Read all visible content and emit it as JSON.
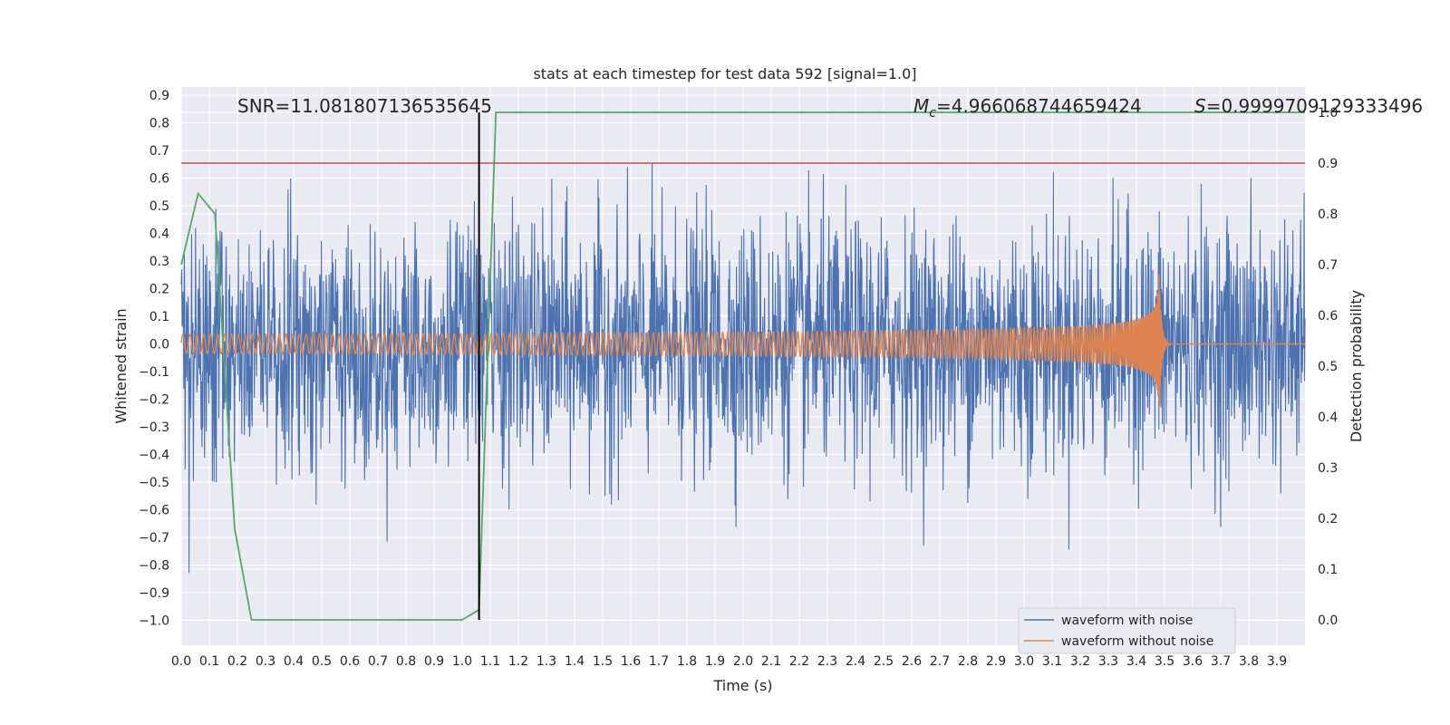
{
  "chart_data": {
    "type": "line",
    "title": "stats at each timestep for test data 592 [signal=1.0]",
    "xlabel": "Time (s)",
    "ylabel": "Whitened strain",
    "y2label": "Detection probability",
    "xlim": [
      0.0,
      4.0
    ],
    "ylim": [
      -1.09,
      0.93
    ],
    "y2lim": [
      -0.05,
      1.05
    ],
    "grid": true,
    "legend_position": "lower-right",
    "xticks": [
      "0.0",
      "0.1",
      "0.2",
      "0.3",
      "0.4",
      "0.5",
      "0.6",
      "0.7",
      "0.8",
      "0.9",
      "1.0",
      "1.1",
      "1.2",
      "1.3",
      "1.4",
      "1.5",
      "1.6",
      "1.7",
      "1.8",
      "1.9",
      "2.0",
      "2.1",
      "2.2",
      "2.3",
      "2.4",
      "2.5",
      "2.6",
      "2.7",
      "2.8",
      "2.9",
      "3.0",
      "3.1",
      "3.2",
      "3.3",
      "3.4",
      "3.5",
      "3.6",
      "3.7",
      "3.8",
      "3.9"
    ],
    "yticks": [
      "0.9",
      "0.8",
      "0.7",
      "0.6",
      "0.5",
      "0.4",
      "0.3",
      "0.2",
      "0.1",
      "0.0",
      "−0.1",
      "−0.2",
      "−0.3",
      "−0.4",
      "−0.5",
      "−0.6",
      "−0.7",
      "−0.8",
      "−0.9",
      "−1.0"
    ],
    "y2ticks": [
      "1.0",
      "0.9",
      "0.8",
      "0.7",
      "0.6",
      "0.5",
      "0.4",
      "0.3",
      "0.2",
      "0.1",
      "0.0"
    ],
    "annotations": {
      "snr": "SNR=11.081807136535645",
      "mc_symbol": "M",
      "mc_subscript": "c",
      "mc_value": "=4.966068744659424",
      "s_symbol": "S",
      "s_value": "=0.9999709129333496"
    },
    "series": [
      {
        "name": "waveform with noise",
        "color": "#4c72b0",
        "description_values": {
          "approx_std": 0.22,
          "min": -1.02,
          "max": 0.83
        }
      },
      {
        "name": "waveform without noise",
        "color": "#dd8452",
        "chirp": {
          "base_amplitude": 0.035,
          "peak_amplitude": 0.28,
          "merger_time": 3.48,
          "ringdown_end": 3.52
        }
      },
      {
        "name": "detection probability",
        "color": "#55a868",
        "axis": "right",
        "x": [
          0.0,
          0.06,
          0.12,
          0.19,
          0.25,
          0.31,
          1.0,
          1.06,
          1.12,
          1.18,
          4.0
        ],
        "y": [
          0.7,
          0.84,
          0.8,
          0.18,
          0.0,
          0.0,
          0.0,
          0.02,
          1.0,
          1.0,
          1.0
        ]
      }
    ],
    "threshold": {
      "axis": "right",
      "value": 0.9,
      "color": "#c44e52"
    },
    "marker_line": {
      "x": 1.06,
      "y2_from": 0.0,
      "y2_to": 1.0,
      "color": "#000000"
    }
  }
}
